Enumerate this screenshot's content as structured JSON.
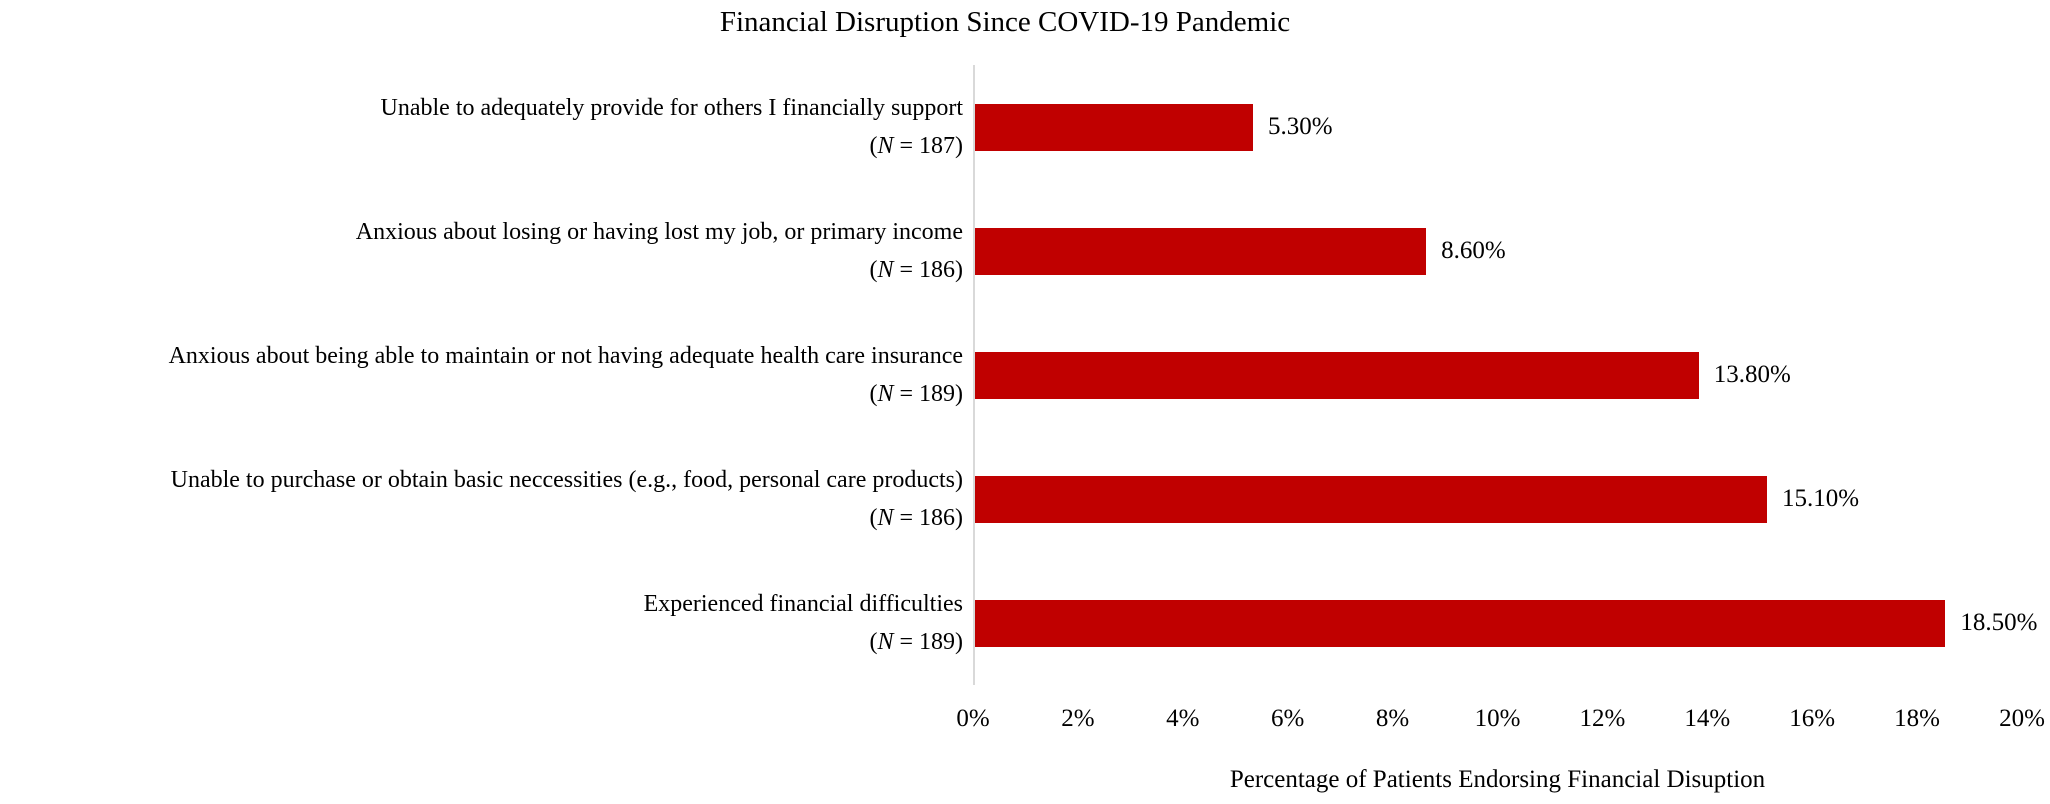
{
  "chart_data": {
    "type": "bar",
    "orientation": "horizontal",
    "title": "Financial Disruption Since COVID-19 Pandemic",
    "xlabel": "Percentage of Patients Endorsing Financial Disuption",
    "ylabel": "",
    "xlim": [
      0,
      20
    ],
    "grid": false,
    "legend": false,
    "bar_color": "#c00000",
    "axis_line_color": "#d9d9d9",
    "x_ticks": [
      {
        "value": 0,
        "label": "0%"
      },
      {
        "value": 2,
        "label": "2%"
      },
      {
        "value": 4,
        "label": "4%"
      },
      {
        "value": 6,
        "label": "6%"
      },
      {
        "value": 8,
        "label": "8%"
      },
      {
        "value": 10,
        "label": "10%"
      },
      {
        "value": 12,
        "label": "12%"
      },
      {
        "value": 14,
        "label": "14%"
      },
      {
        "value": 16,
        "label": "16%"
      },
      {
        "value": 18,
        "label": "18%"
      },
      {
        "value": 20,
        "label": "20%"
      }
    ],
    "categories": [
      {
        "label": "Unable to adequately provide for others I financially support",
        "n": "187",
        "value": 5.3,
        "value_label": "5.30%"
      },
      {
        "label": "Anxious about losing or having lost my job, or primary income",
        "n": "186",
        "value": 8.6,
        "value_label": "8.60%"
      },
      {
        "label": "Anxious about being able to maintain or not having adequate health care insurance",
        "n": "189",
        "value": 13.8,
        "value_label": "13.80%"
      },
      {
        "label": "Unable to purchase or obtain basic neccessities (e.g., food, personal care products)",
        "n": "186",
        "value": 15.1,
        "value_label": "15.10%"
      },
      {
        "label": "Experienced financial difficulties",
        "n": "189",
        "value": 18.5,
        "value_label": "18.50%"
      }
    ]
  }
}
